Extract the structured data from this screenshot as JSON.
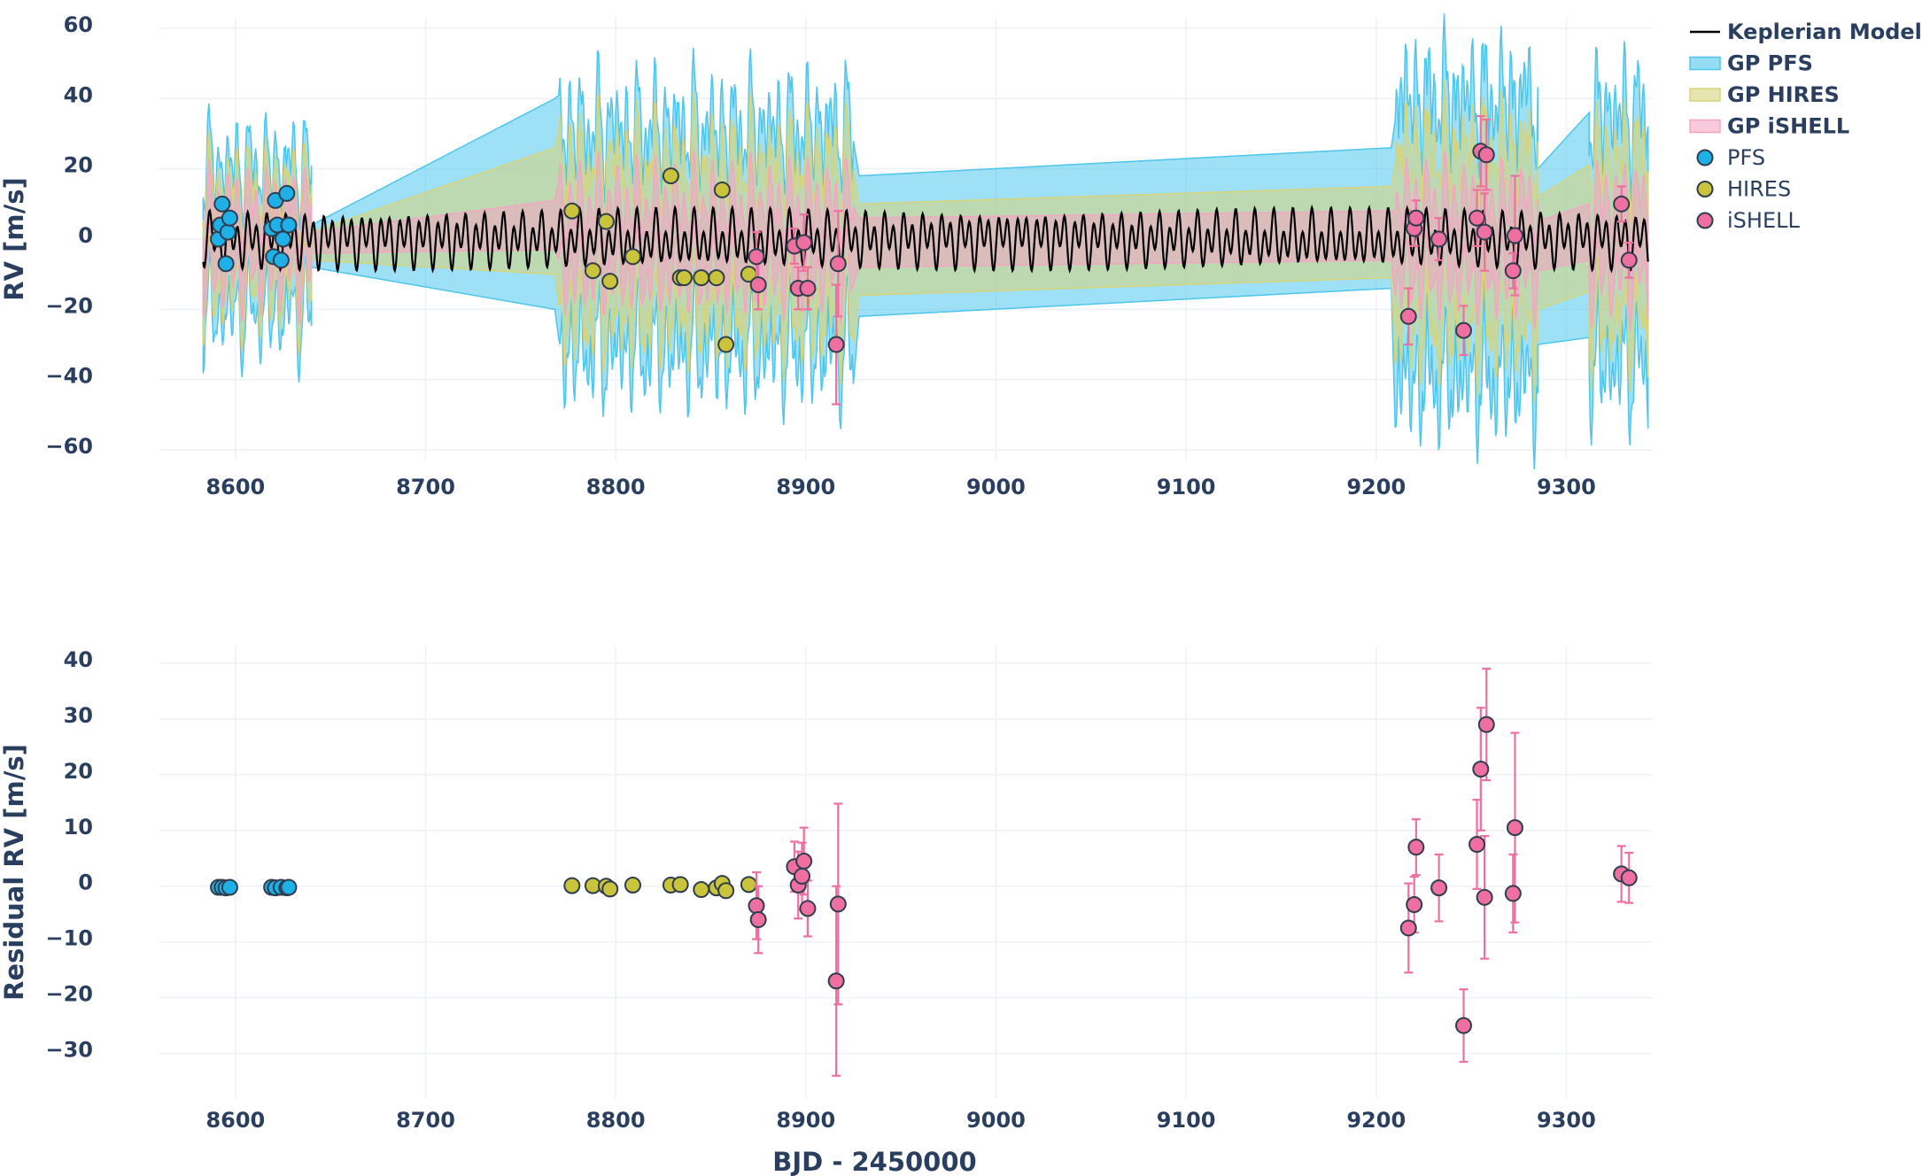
{
  "chart_data": [
    {
      "type": "scatter",
      "panel": "top",
      "title": "",
      "xlabel": "",
      "ylabel": "RV [m/s]",
      "xlim": [
        8560,
        9345
      ],
      "ylim": [
        -63,
        63
      ],
      "xticks": [
        8600,
        8700,
        8800,
        8900,
        9000,
        9100,
        9200,
        9300
      ],
      "yticks": [
        60,
        40,
        20,
        0,
        -20,
        -40,
        -60
      ],
      "xtick_labels": [
        "8600",
        "8700",
        "8800",
        "8900",
        "9000",
        "9100",
        "9200",
        "9300"
      ],
      "ytick_labels": [
        "60",
        "40",
        "20",
        "0",
        "−20",
        "−40",
        "−60"
      ],
      "grid": true,
      "model": {
        "name": "Keplerian Model",
        "color": "#000000",
        "x_range": [
          8583,
          9343
        ],
        "components": [
          {
            "period": 5.0,
            "amplitude": 5.5,
            "phase": 0.0
          },
          {
            "period": 10.15,
            "amplitude": 3.5,
            "phase": 1.2
          }
        ],
        "offset": 0
      },
      "gp_bands": [
        {
          "name": "GP PFS",
          "color": "#4ec6ec",
          "segments": [
            {
              "x": [
                8583,
                8640
              ],
              "half_width": [
                22,
                22
              ],
              "wiggle": 10
            },
            {
              "x": [
                8640,
                8768
              ],
              "center": [
                -2,
                10
              ],
              "half_width": [
                6,
                30
              ],
              "wiggle": 0
            },
            {
              "x": [
                8770,
                8925
              ],
              "half_width": [
                35,
                35
              ],
              "wiggle": 14
            },
            {
              "x": [
                8928,
                9208
              ],
              "center": [
                -2,
                6
              ],
              "half_width": [
                20,
                20
              ],
              "wiggle": 0
            },
            {
              "x": [
                9210,
                9285
              ],
              "half_width": [
                45,
                45
              ],
              "wiggle": 15
            },
            {
              "x": [
                9285,
                9312
              ],
              "center": [
                -5,
                4
              ],
              "half_width": [
                25,
                32
              ],
              "wiggle": 0
            },
            {
              "x": [
                9312,
                9343
              ],
              "half_width": [
                40,
                40
              ],
              "wiggle": 15
            }
          ]
        },
        {
          "name": "GP HIRES",
          "color": "#d6d47a",
          "segments": [
            {
              "x": [
                8583,
                8640
              ],
              "half_width": [
                15,
                15
              ],
              "wiggle": 8
            },
            {
              "x": [
                8640,
                8768
              ],
              "center": [
                -2,
                8
              ],
              "half_width": [
                4,
                18
              ],
              "wiggle": 0
            },
            {
              "x": [
                8770,
                8925
              ],
              "half_width": [
                24,
                24
              ],
              "wiggle": 10
            },
            {
              "x": [
                8928,
                9208
              ],
              "center": [
                -3,
                2
              ],
              "half_width": [
                13,
                13
              ],
              "wiggle": 0
            },
            {
              "x": [
                9210,
                9285
              ],
              "half_width": [
                28,
                28
              ],
              "wiggle": 10
            },
            {
              "x": [
                9285,
                9312
              ],
              "center": [
                -4,
                3
              ],
              "half_width": [
                16,
                18
              ],
              "wiggle": 0
            },
            {
              "x": [
                9312,
                9343
              ],
              "half_width": [
                26,
                26
              ],
              "wiggle": 10
            }
          ]
        },
        {
          "name": "GP iSHELL",
          "color": "#f3a6c3",
          "segments": [
            {
              "x": [
                8583,
                8640
              ],
              "half_width": [
                8,
                8
              ],
              "wiggle": 4
            },
            {
              "x": [
                8640,
                8768
              ],
              "center": [
                -1,
                4
              ],
              "half_width": [
                3,
                7
              ],
              "wiggle": 0
            },
            {
              "x": [
                8770,
                8925
              ],
              "half_width": [
                9,
                9
              ],
              "wiggle": 4
            },
            {
              "x": [
                8928,
                9208
              ],
              "center": [
                -1,
                1
              ],
              "half_width": [
                7,
                7
              ],
              "wiggle": 0
            },
            {
              "x": [
                9210,
                9285
              ],
              "half_width": [
                10,
                10
              ],
              "wiggle": 4
            },
            {
              "x": [
                9285,
                9312
              ],
              "center": [
                -2,
                2
              ],
              "half_width": [
                7,
                8
              ],
              "wiggle": 0
            },
            {
              "x": [
                9312,
                9343
              ],
              "half_width": [
                10,
                10
              ],
              "wiggle": 4
            }
          ]
        }
      ],
      "series": [
        {
          "name": "PFS",
          "color": "#1eb0e6",
          "points": [
            {
              "x": 8591,
              "y": 0,
              "err": 0
            },
            {
              "x": 8592,
              "y": 4,
              "err": 0
            },
            {
              "x": 8593,
              "y": 10,
              "err": 0
            },
            {
              "x": 8595,
              "y": -7,
              "err": 0
            },
            {
              "x": 8596,
              "y": 2,
              "err": 0
            },
            {
              "x": 8597,
              "y": 6,
              "err": 0
            },
            {
              "x": 8619,
              "y": 3,
              "err": 0
            },
            {
              "x": 8620,
              "y": -5,
              "err": 0
            },
            {
              "x": 8621,
              "y": 11,
              "err": 0
            },
            {
              "x": 8622,
              "y": 4,
              "err": 0
            },
            {
              "x": 8624,
              "y": -6,
              "err": 0
            },
            {
              "x": 8625,
              "y": 0,
              "err": 0
            },
            {
              "x": 8627,
              "y": 13,
              "err": 0
            },
            {
              "x": 8628,
              "y": 4,
              "err": 0
            }
          ]
        },
        {
          "name": "HIRES",
          "color": "#c9c43c",
          "points": [
            {
              "x": 8777,
              "y": 8,
              "err": 0
            },
            {
              "x": 8788,
              "y": -9,
              "err": 0
            },
            {
              "x": 8795,
              "y": 5,
              "err": 0
            },
            {
              "x": 8797,
              "y": -12,
              "err": 0
            },
            {
              "x": 8809,
              "y": -5,
              "err": 0
            },
            {
              "x": 8829,
              "y": 18,
              "err": 0
            },
            {
              "x": 8834,
              "y": -11,
              "err": 0
            },
            {
              "x": 8836,
              "y": -11,
              "err": 0
            },
            {
              "x": 8845,
              "y": -11,
              "err": 0
            },
            {
              "x": 8853,
              "y": -11,
              "err": 0
            },
            {
              "x": 8856,
              "y": 14,
              "err": 0
            },
            {
              "x": 8858,
              "y": -30,
              "err": 0
            },
            {
              "x": 8870,
              "y": -10,
              "err": 0
            }
          ]
        },
        {
          "name": "iSHELL",
          "color": "#ee6fa0",
          "points": [
            {
              "x": 8874,
              "y": -5,
              "err": 7
            },
            {
              "x": 8875,
              "y": -13,
              "err": 7
            },
            {
              "x": 8894,
              "y": -2,
              "err": 5
            },
            {
              "x": 8896,
              "y": -14,
              "err": 6
            },
            {
              "x": 8899,
              "y": -1,
              "err": 8
            },
            {
              "x": 8901,
              "y": -14,
              "err": 6
            },
            {
              "x": 8916,
              "y": -30,
              "err": 17
            },
            {
              "x": 8917,
              "y": -7,
              "err": 15
            },
            {
              "x": 9217,
              "y": -22,
              "err": 8
            },
            {
              "x": 9220,
              "y": 3,
              "err": 5
            },
            {
              "x": 9221,
              "y": 6,
              "err": 5
            },
            {
              "x": 9233,
              "y": 0,
              "err": 6
            },
            {
              "x": 9246,
              "y": -26,
              "err": 7
            },
            {
              "x": 9253,
              "y": 6,
              "err": 8
            },
            {
              "x": 9255,
              "y": 25,
              "err": 10
            },
            {
              "x": 9257,
              "y": 2,
              "err": 11
            },
            {
              "x": 9258,
              "y": 24,
              "err": 10
            },
            {
              "x": 9272,
              "y": -9,
              "err": 5
            },
            {
              "x": 9273,
              "y": 1,
              "err": 17
            },
            {
              "x": 9329,
              "y": 10,
              "err": 5
            },
            {
              "x": 9333,
              "y": -6,
              "err": 5
            }
          ]
        }
      ],
      "legend": {
        "position": "right",
        "entries": [
          {
            "label": "Keplerian Model",
            "kind": "line",
            "color": "#000000",
            "bold": true
          },
          {
            "label": "GP PFS",
            "kind": "band",
            "color": "#4ec6ec",
            "bold": true
          },
          {
            "label": "GP HIRES",
            "kind": "band",
            "color": "#d6d47a",
            "bold": true
          },
          {
            "label": "GP iSHELL",
            "kind": "band",
            "color": "#f3a6c3",
            "bold": true
          },
          {
            "label": "PFS",
            "kind": "marker",
            "color": "#1eb0e6",
            "bold": false
          },
          {
            "label": "HIRES",
            "kind": "marker",
            "color": "#c9c43c",
            "bold": false
          },
          {
            "label": "iSHELL",
            "kind": "marker",
            "color": "#ee6fa0",
            "bold": false
          }
        ]
      }
    },
    {
      "type": "scatter",
      "panel": "bottom",
      "title": "",
      "xlabel": "BJD - 2450000",
      "ylabel": "Residual RV [m/s]",
      "xlim": [
        8560,
        9345
      ],
      "ylim": [
        -38,
        43
      ],
      "xticks": [
        8600,
        8700,
        8800,
        8900,
        9000,
        9100,
        9200,
        9300
      ],
      "yticks": [
        40,
        30,
        20,
        10,
        0,
        -10,
        -20,
        -30
      ],
      "xtick_labels": [
        "8600",
        "8700",
        "8800",
        "8900",
        "9000",
        "9100",
        "9200",
        "9300"
      ],
      "ytick_labels": [
        "40",
        "30",
        "20",
        "10",
        "0",
        "−10",
        "−20",
        "−30"
      ],
      "grid": true,
      "series": [
        {
          "name": "PFS",
          "color": "#1eb0e6",
          "points": [
            {
              "x": 8591,
              "y": -0.2,
              "err": 0
            },
            {
              "x": 8593,
              "y": -0.2,
              "err": 0
            },
            {
              "x": 8595,
              "y": -0.3,
              "err": 0
            },
            {
              "x": 8597,
              "y": -0.2,
              "err": 0
            },
            {
              "x": 8619,
              "y": -0.2,
              "err": 0
            },
            {
              "x": 8621,
              "y": -0.3,
              "err": 0
            },
            {
              "x": 8624,
              "y": -0.2,
              "err": 0
            },
            {
              "x": 8627,
              "y": -0.3,
              "err": 0
            },
            {
              "x": 8628,
              "y": -0.2,
              "err": 0
            }
          ]
        },
        {
          "name": "HIRES",
          "color": "#c9c43c",
          "points": [
            {
              "x": 8777,
              "y": 0.1,
              "err": 0
            },
            {
              "x": 8788,
              "y": 0.1,
              "err": 0
            },
            {
              "x": 8795,
              "y": 0.0,
              "err": 0
            },
            {
              "x": 8797,
              "y": -0.5,
              "err": 0
            },
            {
              "x": 8809,
              "y": 0.2,
              "err": 0
            },
            {
              "x": 8829,
              "y": 0.2,
              "err": 0
            },
            {
              "x": 8834,
              "y": 0.3,
              "err": 0
            },
            {
              "x": 8845,
              "y": -0.6,
              "err": 0
            },
            {
              "x": 8853,
              "y": -0.3,
              "err": 0
            },
            {
              "x": 8856,
              "y": 0.5,
              "err": 0
            },
            {
              "x": 8858,
              "y": -0.8,
              "err": 0
            },
            {
              "x": 8870,
              "y": 0.3,
              "err": 0
            }
          ]
        },
        {
          "name": "iSHELL",
          "color": "#ee6fa0",
          "points": [
            {
              "x": 8874,
              "y": -3.5,
              "err": 6
            },
            {
              "x": 8875,
              "y": -6,
              "err": 6
            },
            {
              "x": 8894,
              "y": 3.5,
              "err": 4.5
            },
            {
              "x": 8896,
              "y": 0.2,
              "err": 6
            },
            {
              "x": 8898,
              "y": 1.8,
              "err": 6
            },
            {
              "x": 8899,
              "y": 4.5,
              "err": 6
            },
            {
              "x": 8901,
              "y": -4,
              "err": 5
            },
            {
              "x": 8916,
              "y": -17,
              "err": 17
            },
            {
              "x": 8917,
              "y": -3.2,
              "err": 18
            },
            {
              "x": 9217,
              "y": -7.5,
              "err": 8
            },
            {
              "x": 9220,
              "y": -3.3,
              "err": 5
            },
            {
              "x": 9221,
              "y": 7,
              "err": 5
            },
            {
              "x": 9233,
              "y": -0.3,
              "err": 6
            },
            {
              "x": 9246,
              "y": -25,
              "err": 6.5
            },
            {
              "x": 9253,
              "y": 7.5,
              "err": 8
            },
            {
              "x": 9255,
              "y": 21,
              "err": 11
            },
            {
              "x": 9257,
              "y": -2,
              "err": 11
            },
            {
              "x": 9258,
              "y": 29,
              "err": 10
            },
            {
              "x": 9272,
              "y": -1.3,
              "err": 7
            },
            {
              "x": 9273,
              "y": 10.5,
              "err": 17
            },
            {
              "x": 9329,
              "y": 2.2,
              "err": 5
            },
            {
              "x": 9333,
              "y": 1.5,
              "err": 4.5
            }
          ]
        }
      ]
    }
  ]
}
